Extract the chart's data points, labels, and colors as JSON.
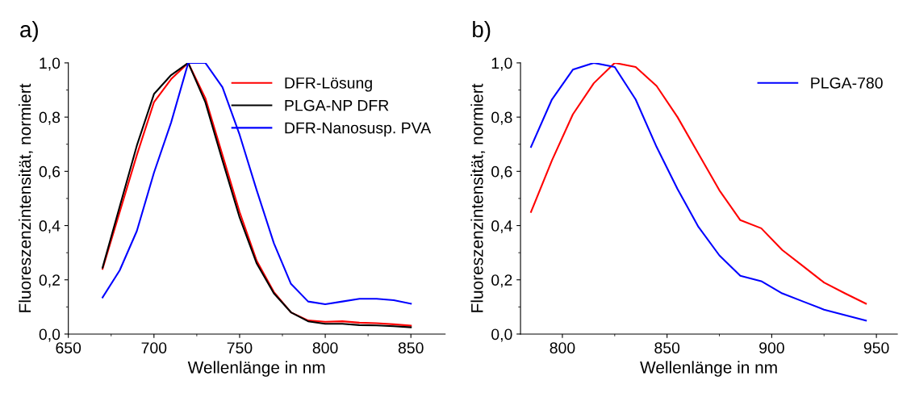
{
  "chart_data": [
    {
      "type": "line",
      "title": "a)",
      "xlabel": "Wellenlänge in nm",
      "ylabel": "Fluoreszenzintensität, normiert",
      "x": [
        670,
        680,
        690,
        700,
        710,
        720,
        730,
        740,
        750,
        760,
        770,
        780,
        790,
        800,
        810,
        820,
        830,
        840,
        850
      ],
      "series": [
        {
          "name": "DFR-Lösung",
          "color": "#ff0000",
          "values": [
            0.24,
            0.45,
            0.66,
            0.855,
            0.94,
            1.0,
            0.87,
            0.66,
            0.45,
            0.27,
            0.155,
            0.08,
            0.05,
            0.045,
            0.047,
            0.042,
            0.04,
            0.036,
            0.031
          ]
        },
        {
          "name": "PLGA-NP DFR",
          "color": "#000000",
          "values": [
            0.245,
            0.47,
            0.695,
            0.885,
            0.955,
            1.0,
            0.855,
            0.64,
            0.43,
            0.26,
            0.15,
            0.08,
            0.047,
            0.038,
            0.038,
            0.033,
            0.032,
            0.029,
            0.025
          ]
        },
        {
          "name": "DFR-Nanosusp. PVA",
          "color": "#0000ff",
          "values": [
            0.135,
            0.235,
            0.38,
            0.595,
            0.78,
            1.0,
            1.0,
            0.91,
            0.735,
            0.53,
            0.335,
            0.185,
            0.12,
            0.11,
            0.12,
            0.13,
            0.13,
            0.125,
            0.112
          ]
        }
      ],
      "xlim": [
        650,
        870
      ],
      "xticks": [
        650,
        700,
        750,
        800,
        850
      ],
      "ylim": [
        0,
        1
      ],
      "yticks": [
        {
          "value": 0,
          "label": "0,0"
        },
        {
          "value": 0.2,
          "label": "0,2"
        },
        {
          "value": 0.4,
          "label": "0,4"
        },
        {
          "value": 0.6,
          "label": "0,6"
        },
        {
          "value": 0.8,
          "label": "0,8"
        },
        {
          "value": 1.0,
          "label": "1,0"
        }
      ],
      "grid": false,
      "legend": "top right",
      "marker": "none",
      "line_style": "solid"
    },
    {
      "type": "line",
      "title": "b)",
      "xlabel": "Wellenlänge in nm",
      "ylabel": "Fluoreszenzintensität, normiert",
      "x": [
        785,
        795,
        805,
        815,
        825,
        835,
        845,
        855,
        865,
        875,
        885,
        895,
        905,
        915,
        925,
        935,
        945
      ],
      "series": [
        {
          "color": "#ff0000",
          "values": [
            0.45,
            0.64,
            0.81,
            0.925,
            1.0,
            0.985,
            0.915,
            0.8,
            0.665,
            0.53,
            0.42,
            0.39,
            0.31,
            0.25,
            0.19,
            0.15,
            0.112
          ]
        },
        {
          "name": "PLGA-780",
          "color": "#0000ff",
          "values": [
            0.69,
            0.865,
            0.975,
            1.0,
            0.985,
            0.865,
            0.69,
            0.535,
            0.395,
            0.29,
            0.215,
            0.195,
            0.15,
            0.12,
            0.09,
            0.07,
            0.05
          ]
        }
      ],
      "xlim": [
        780,
        960
      ],
      "xticks": [
        800,
        850,
        900,
        950
      ],
      "ylim": [
        0,
        1
      ],
      "yticks": [
        {
          "value": 0,
          "label": "0,0"
        },
        {
          "value": 0.2,
          "label": "0,2"
        },
        {
          "value": 0.4,
          "label": "0,4"
        },
        {
          "value": 0.6,
          "label": "0,6"
        },
        {
          "value": 0.8,
          "label": "0,8"
        },
        {
          "value": 1.0,
          "label": "1,0"
        }
      ],
      "grid": false,
      "legend": "top right",
      "marker": "none",
      "line_style": "solid"
    }
  ]
}
